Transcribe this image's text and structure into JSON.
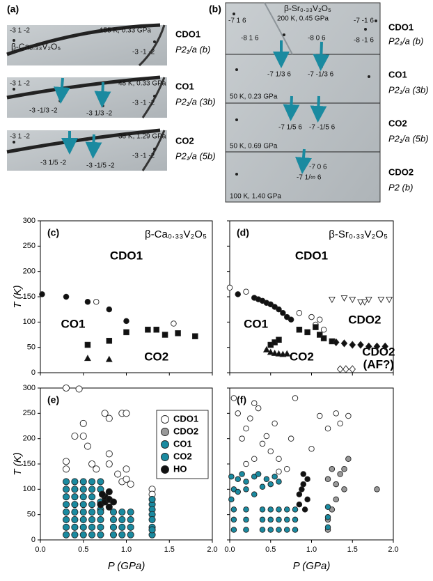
{
  "images": [
    {
      "label": "(a)",
      "rows": [
        {
          "texts": [
            "-3 1 -2",
            "155 K, 0.33 GPa",
            "β-Ca₀.₃₃V₂O₅",
            "-3 -1 -2"
          ],
          "phase": "CDO1",
          "group": "P2₁/a (b)"
        },
        {
          "texts": [
            "-3 1 -2",
            "48 K, 0.33 GPa",
            "-3 -1/3 -2",
            "-3 1/3 -2",
            "-3 -1 -2"
          ],
          "phase": "CO1",
          "group": "P2₁/a (3b)"
        },
        {
          "texts": [
            "-3 1 -2",
            "38 K, 1.29 GPa",
            "-3 1/5 -2",
            "-3 -1/5 -2",
            "-3 -1 -2"
          ],
          "phase": "CO2",
          "group": "P2₁/a (5b)"
        }
      ]
    },
    {
      "label": "(b)",
      "rows": [
        {
          "texts": [
            "-7 1 6",
            "β-Sr₀.₃₃V₂O₅",
            "-7 -1 6",
            "200 K, 0.45 GPa",
            "-8 1 6",
            "-8 0 6",
            "-8 -1 6"
          ],
          "phase": "CDO1",
          "group": "P2₁/a (b)"
        },
        {
          "texts": [
            "-7 1/3 6",
            "-7 -1/3 6",
            "50 K, 0.23 GPa"
          ],
          "phase": "CO1",
          "group": "P2₁/a (3b)"
        },
        {
          "texts": [
            "-7 1/5 6",
            "-7 -1/5 6",
            "50 K, 0.69 GPa"
          ],
          "phase": "CO2",
          "group": "P2₁/a (5b)"
        },
        {
          "texts": [
            "-7 0 6",
            "-7 1/∞ 6",
            "100 K, 1.40 GPa"
          ],
          "phase": "CDO2",
          "group": "P2 (b)"
        }
      ]
    }
  ],
  "chart_data": [
    {
      "type": "scatter",
      "label": "(c)",
      "title": "β-Ca₀.₃₃V₂O₅",
      "ylabel": "T (K)",
      "xlim": [
        0,
        2
      ],
      "ylim": [
        0,
        300
      ],
      "xticks": [
        0,
        0.5,
        1,
        1.5,
        2
      ],
      "yticks": [
        0,
        50,
        100,
        150,
        200,
        250,
        300
      ],
      "annotations": [
        "CDO1",
        "CO1",
        "CO2"
      ],
      "series": [
        {
          "marker": "circle",
          "color": "#111111",
          "x": [
            0.02,
            0.3,
            0.55,
            0.8,
            1.0
          ],
          "values": [
            155,
            150,
            140,
            125,
            102
          ]
        },
        {
          "marker": "circle",
          "color": "#ffffff",
          "x": [
            0.65,
            1.55
          ],
          "values": [
            140,
            97
          ]
        },
        {
          "marker": "square",
          "color": "#111111",
          "x": [
            0.55,
            0.8,
            1.0,
            1.25,
            1.35,
            1.45,
            1.6,
            1.8
          ],
          "values": [
            55,
            63,
            80,
            85,
            85,
            75,
            78,
            72
          ]
        },
        {
          "marker": "triangle",
          "color": "#111111",
          "x": [
            0.55,
            0.8
          ],
          "values": [
            28,
            26
          ]
        }
      ]
    },
    {
      "type": "scatter",
      "label": "(d)",
      "title": "β-Sr₀.₃₃V₂O₅",
      "xlim": [
        0,
        2
      ],
      "ylim": [
        0,
        300
      ],
      "xticks": [
        0,
        0.5,
        1,
        1.5,
        2
      ],
      "yticks": [
        0,
        50,
        100,
        150,
        200,
        250,
        300
      ],
      "annotations": [
        "CDO1",
        "CO1",
        "CO2",
        "CDO2",
        "CDO2",
        "(AF?)"
      ],
      "series": [
        {
          "marker": "circle",
          "color": "#111111",
          "x": [
            0.3,
            0.35,
            0.4,
            0.45,
            0.5,
            0.55,
            0.6,
            0.65,
            0.7,
            0.75,
            0.1
          ],
          "values": [
            148,
            145,
            142,
            138,
            135,
            130,
            125,
            118,
            110,
            105,
            155
          ]
        },
        {
          "marker": "circle",
          "color": "#ffffff",
          "x": [
            0.0,
            0.2,
            0.85,
            1.0,
            1.05,
            1.1,
            1.15
          ],
          "values": [
            168,
            160,
            118,
            110,
            95,
            105,
            85
          ]
        },
        {
          "marker": "triangle-down",
          "color": "#ffffff",
          "x": [
            1.25,
            1.4,
            1.5,
            1.6,
            1.65,
            1.7,
            1.85,
            1.95
          ],
          "values": [
            145,
            148,
            145,
            140,
            140,
            145,
            145,
            145
          ]
        },
        {
          "marker": "square",
          "color": "#111111",
          "x": [
            0.85,
            0.95,
            1.05,
            1.1,
            1.15,
            1.25,
            0.5,
            0.55,
            0.6
          ],
          "values": [
            85,
            80,
            90,
            75,
            68,
            62,
            55,
            60,
            65
          ]
        },
        {
          "marker": "diamond",
          "color": "#111111",
          "x": [
            1.3,
            1.4,
            1.5,
            1.6,
            1.7,
            1.8,
            1.9
          ],
          "values": [
            60,
            58,
            55,
            55,
            52,
            52,
            52
          ]
        },
        {
          "marker": "triangle",
          "color": "#111111",
          "x": [
            0.45,
            0.5,
            0.55,
            0.6,
            0.65,
            0.7
          ],
          "values": [
            45,
            40,
            38,
            37,
            36,
            37
          ]
        },
        {
          "marker": "diamond",
          "color": "#ffffff",
          "x": [
            1.35,
            1.42,
            1.5
          ],
          "values": [
            7,
            7,
            7
          ]
        }
      ]
    },
    {
      "type": "scatter",
      "label": "(e)",
      "ylabel": "T (K)",
      "xlabel": "P (GPa)",
      "legend": "upper right",
      "xlim": [
        0,
        2
      ],
      "ylim": [
        0,
        300
      ],
      "xticks": [
        {
          "value": 0,
          "label": "0.0"
        },
        0.5,
        {
          "value": 1,
          "label": "1.0"
        },
        1.5,
        {
          "value": 2,
          "label": "2.0"
        }
      ],
      "yticks": [
        0,
        50,
        100,
        150,
        200,
        250,
        300
      ],
      "series": [
        {
          "name": "CDO1",
          "marker": "circle",
          "color": "#ffffff",
          "x": [
            0.3,
            0.45,
            0.5,
            0.5,
            0.55,
            0.4,
            0.3,
            0.3,
            0.75,
            0.8,
            0.8,
            0.8,
            0.95,
            1.0,
            0.9,
            0.95,
            1.0,
            1.05,
            1.3,
            1.3,
            0.65,
            0.6,
            1.0
          ],
          "values": [
            300,
            298,
            230,
            205,
            185,
            205,
            140,
            155,
            250,
            240,
            170,
            150,
            250,
            250,
            130,
            115,
            120,
            110,
            100,
            90,
            140,
            150,
            140
          ]
        },
        {
          "name": "CDO2",
          "marker": "circle",
          "color": "#999999",
          "x": [],
          "values": []
        },
        {
          "name": "CO1",
          "marker": "circle",
          "color": "#1a8aa0",
          "x": [
            0.3,
            0.3,
            0.3,
            0.3,
            0.4,
            0.4,
            0.4,
            0.4,
            0.5,
            0.5,
            0.5,
            0.5,
            0.6,
            0.6,
            0.6,
            0.6,
            0.7,
            0.7,
            0.7,
            0.7,
            1.3,
            1.3,
            1.3,
            1.3
          ],
          "values": [
            70,
            85,
            100,
            115,
            70,
            85,
            100,
            115,
            70,
            85,
            100,
            115,
            70,
            85,
            100,
            115,
            60,
            75,
            100,
            115,
            70,
            80,
            60,
            50
          ]
        },
        {
          "name": "CO2",
          "marker": "circle",
          "color": "#1a8aa0",
          "x": [
            0.3,
            0.3,
            0.3,
            0.3,
            0.4,
            0.4,
            0.4,
            0.4,
            0.5,
            0.5,
            0.5,
            0.5,
            0.6,
            0.6,
            0.6,
            0.6,
            0.7,
            0.7,
            0.7,
            0.7,
            0.85,
            0.85,
            0.85,
            0.85,
            0.95,
            0.95,
            0.95,
            0.95,
            1.05,
            1.05,
            1.05,
            1.05,
            1.3,
            1.3,
            1.3,
            1.3
          ],
          "values": [
            10,
            25,
            40,
            55,
            10,
            25,
            40,
            55,
            10,
            25,
            40,
            55,
            10,
            25,
            40,
            55,
            10,
            25,
            40,
            55,
            10,
            25,
            40,
            55,
            10,
            25,
            40,
            55,
            10,
            25,
            40,
            55,
            10,
            25,
            40,
            20
          ]
        },
        {
          "name": "HO",
          "marker": "circle",
          "color": "#111111",
          "x": [
            0.7,
            0.75,
            0.75,
            0.8,
            0.8,
            0.8,
            0.85,
            0.72
          ],
          "values": [
            70,
            75,
            85,
            65,
            80,
            95,
            75,
            90
          ]
        }
      ]
    },
    {
      "type": "scatter",
      "label": "(f)",
      "xlabel": "P (GPa)",
      "xlim": [
        0,
        2
      ],
      "ylim": [
        0,
        300
      ],
      "xticks": [
        {
          "value": 0,
          "label": "0.0"
        },
        0.5,
        {
          "value": 1,
          "label": "1.0"
        },
        1.5,
        {
          "value": 2,
          "label": "2.0"
        }
      ],
      "yticks": [
        0,
        50,
        100,
        150,
        200,
        250,
        300
      ],
      "series": [
        {
          "name": "CDO1",
          "marker": "circle",
          "color": "#ffffff",
          "x": [
            0.05,
            0.1,
            0.15,
            0.2,
            0.25,
            0.3,
            0.35,
            0.4,
            0.45,
            0.5,
            0.55,
            0.6,
            0.7,
            0.75,
            0.8,
            1.0,
            1.2,
            1.3,
            1.35,
            1.45,
            0.2,
            0.3,
            0.6,
            1.1
          ],
          "values": [
            280,
            250,
            200,
            220,
            240,
            270,
            260,
            190,
            205,
            175,
            230,
            160,
            140,
            200,
            280,
            180,
            220,
            250,
            230,
            245,
            150,
            160,
            135,
            245
          ]
        },
        {
          "name": "CDO2",
          "marker": "circle",
          "color": "#999999",
          "x": [
            1.2,
            1.2,
            1.25,
            1.3,
            1.3,
            1.35,
            1.4,
            1.4,
            1.45,
            1.2,
            1.25,
            1.8
          ],
          "values": [
            20,
            40,
            60,
            80,
            110,
            130,
            100,
            140,
            160,
            120,
            140,
            100
          ]
        },
        {
          "name": "CO1",
          "marker": "circle",
          "color": "#1a8aa0",
          "x": [
            0.02,
            0.05,
            0.1,
            0.15,
            0.2,
            0.3,
            0.35,
            0.45,
            0.5,
            0.55,
            0.6,
            0.02,
            0.1,
            0.2,
            0.3,
            0.4
          ],
          "values": [
            125,
            100,
            120,
            130,
            115,
            125,
            130,
            120,
            110,
            125,
            115,
            80,
            95,
            100,
            90,
            105
          ]
        },
        {
          "name": "CO2",
          "marker": "circle",
          "color": "#1a8aa0",
          "x": [
            0.05,
            0.05,
            0.05,
            0.2,
            0.2,
            0.2,
            0.4,
            0.4,
            0.4,
            0.5,
            0.5,
            0.5,
            0.6,
            0.6,
            0.6,
            0.7,
            0.7,
            0.7,
            0.8,
            0.8,
            0.8,
            1.2,
            1.2,
            1.2
          ],
          "values": [
            20,
            40,
            60,
            20,
            40,
            60,
            20,
            40,
            60,
            20,
            40,
            60,
            20,
            40,
            60,
            20,
            40,
            60,
            20,
            40,
            60,
            25,
            45,
            65
          ]
        },
        {
          "name": "HO",
          "marker": "circle",
          "color": "#111111",
          "x": [
            0.85,
            0.85,
            0.9,
            0.9,
            0.95,
            0.95,
            0.88,
            0.92
          ],
          "values": [
            70,
            90,
            110,
            130,
            80,
            120,
            100,
            60
          ]
        }
      ]
    }
  ]
}
